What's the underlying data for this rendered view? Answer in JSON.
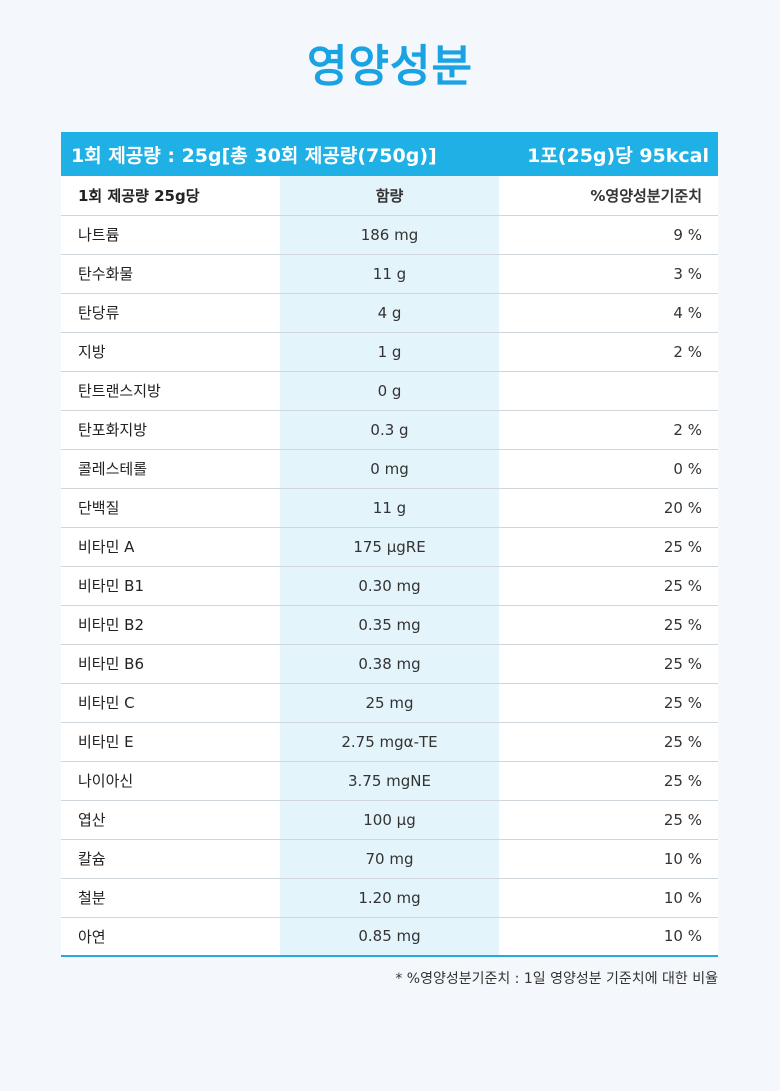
{
  "title": "영양성분",
  "header": {
    "serving_text": "1회 제공량 : 25g[총 30회 제공량(750g)]",
    "calories_text": "1포(25g)당 95kcal"
  },
  "columns": {
    "name": "1회 제공량 25g당",
    "amount": "함량",
    "percent": "%영양성분기준치"
  },
  "rows": [
    {
      "name": "나트륨",
      "amount": "186 mg",
      "percent": "9 %"
    },
    {
      "name": "탄수화물",
      "amount": "11 g",
      "percent": "3 %"
    },
    {
      "name": "탄당류",
      "amount": "4 g",
      "percent": "4 %"
    },
    {
      "name": "지방",
      "amount": "1 g",
      "percent": "2 %"
    },
    {
      "name": "탄트랜스지방",
      "amount": "0 g",
      "percent": ""
    },
    {
      "name": "탄포화지방",
      "amount": "0.3 g",
      "percent": "2 %"
    },
    {
      "name": "콜레스테롤",
      "amount": "0 mg",
      "percent": "0 %"
    },
    {
      "name": "단백질",
      "amount": "11 g",
      "percent": "20 %"
    },
    {
      "name": "비타민 A",
      "amount": "175 μgRE",
      "percent": "25 %"
    },
    {
      "name": "비타민 B1",
      "amount": "0.30 mg",
      "percent": "25 %"
    },
    {
      "name": "비타민 B2",
      "amount": "0.35 mg",
      "percent": "25 %"
    },
    {
      "name": "비타민 B6",
      "amount": "0.38 mg",
      "percent": "25 %"
    },
    {
      "name": "비타민 C",
      "amount": "25 mg",
      "percent": "25 %"
    },
    {
      "name": "비타민 E",
      "amount": "2.75 mgα-TE",
      "percent": "25 %"
    },
    {
      "name": "나이아신",
      "amount": "3.75 mgNE",
      "percent": "25 %"
    },
    {
      "name": "엽산",
      "amount": "100 μg",
      "percent": "25 %"
    },
    {
      "name": "칼슘",
      "amount": "70 mg",
      "percent": "10 %"
    },
    {
      "name": "철분",
      "amount": "1.20 mg",
      "percent": "10 %"
    },
    {
      "name": "아연",
      "amount": "0.85 mg",
      "percent": "10 %"
    }
  ],
  "footnote": "* %영양성분기준치 : 1일 영양성분 기준치에 대한 비율",
  "colors": {
    "title": "#1aa3e3",
    "header_bar": "#1fb1e6",
    "amount_column_bg": "#e4f4fb"
  }
}
